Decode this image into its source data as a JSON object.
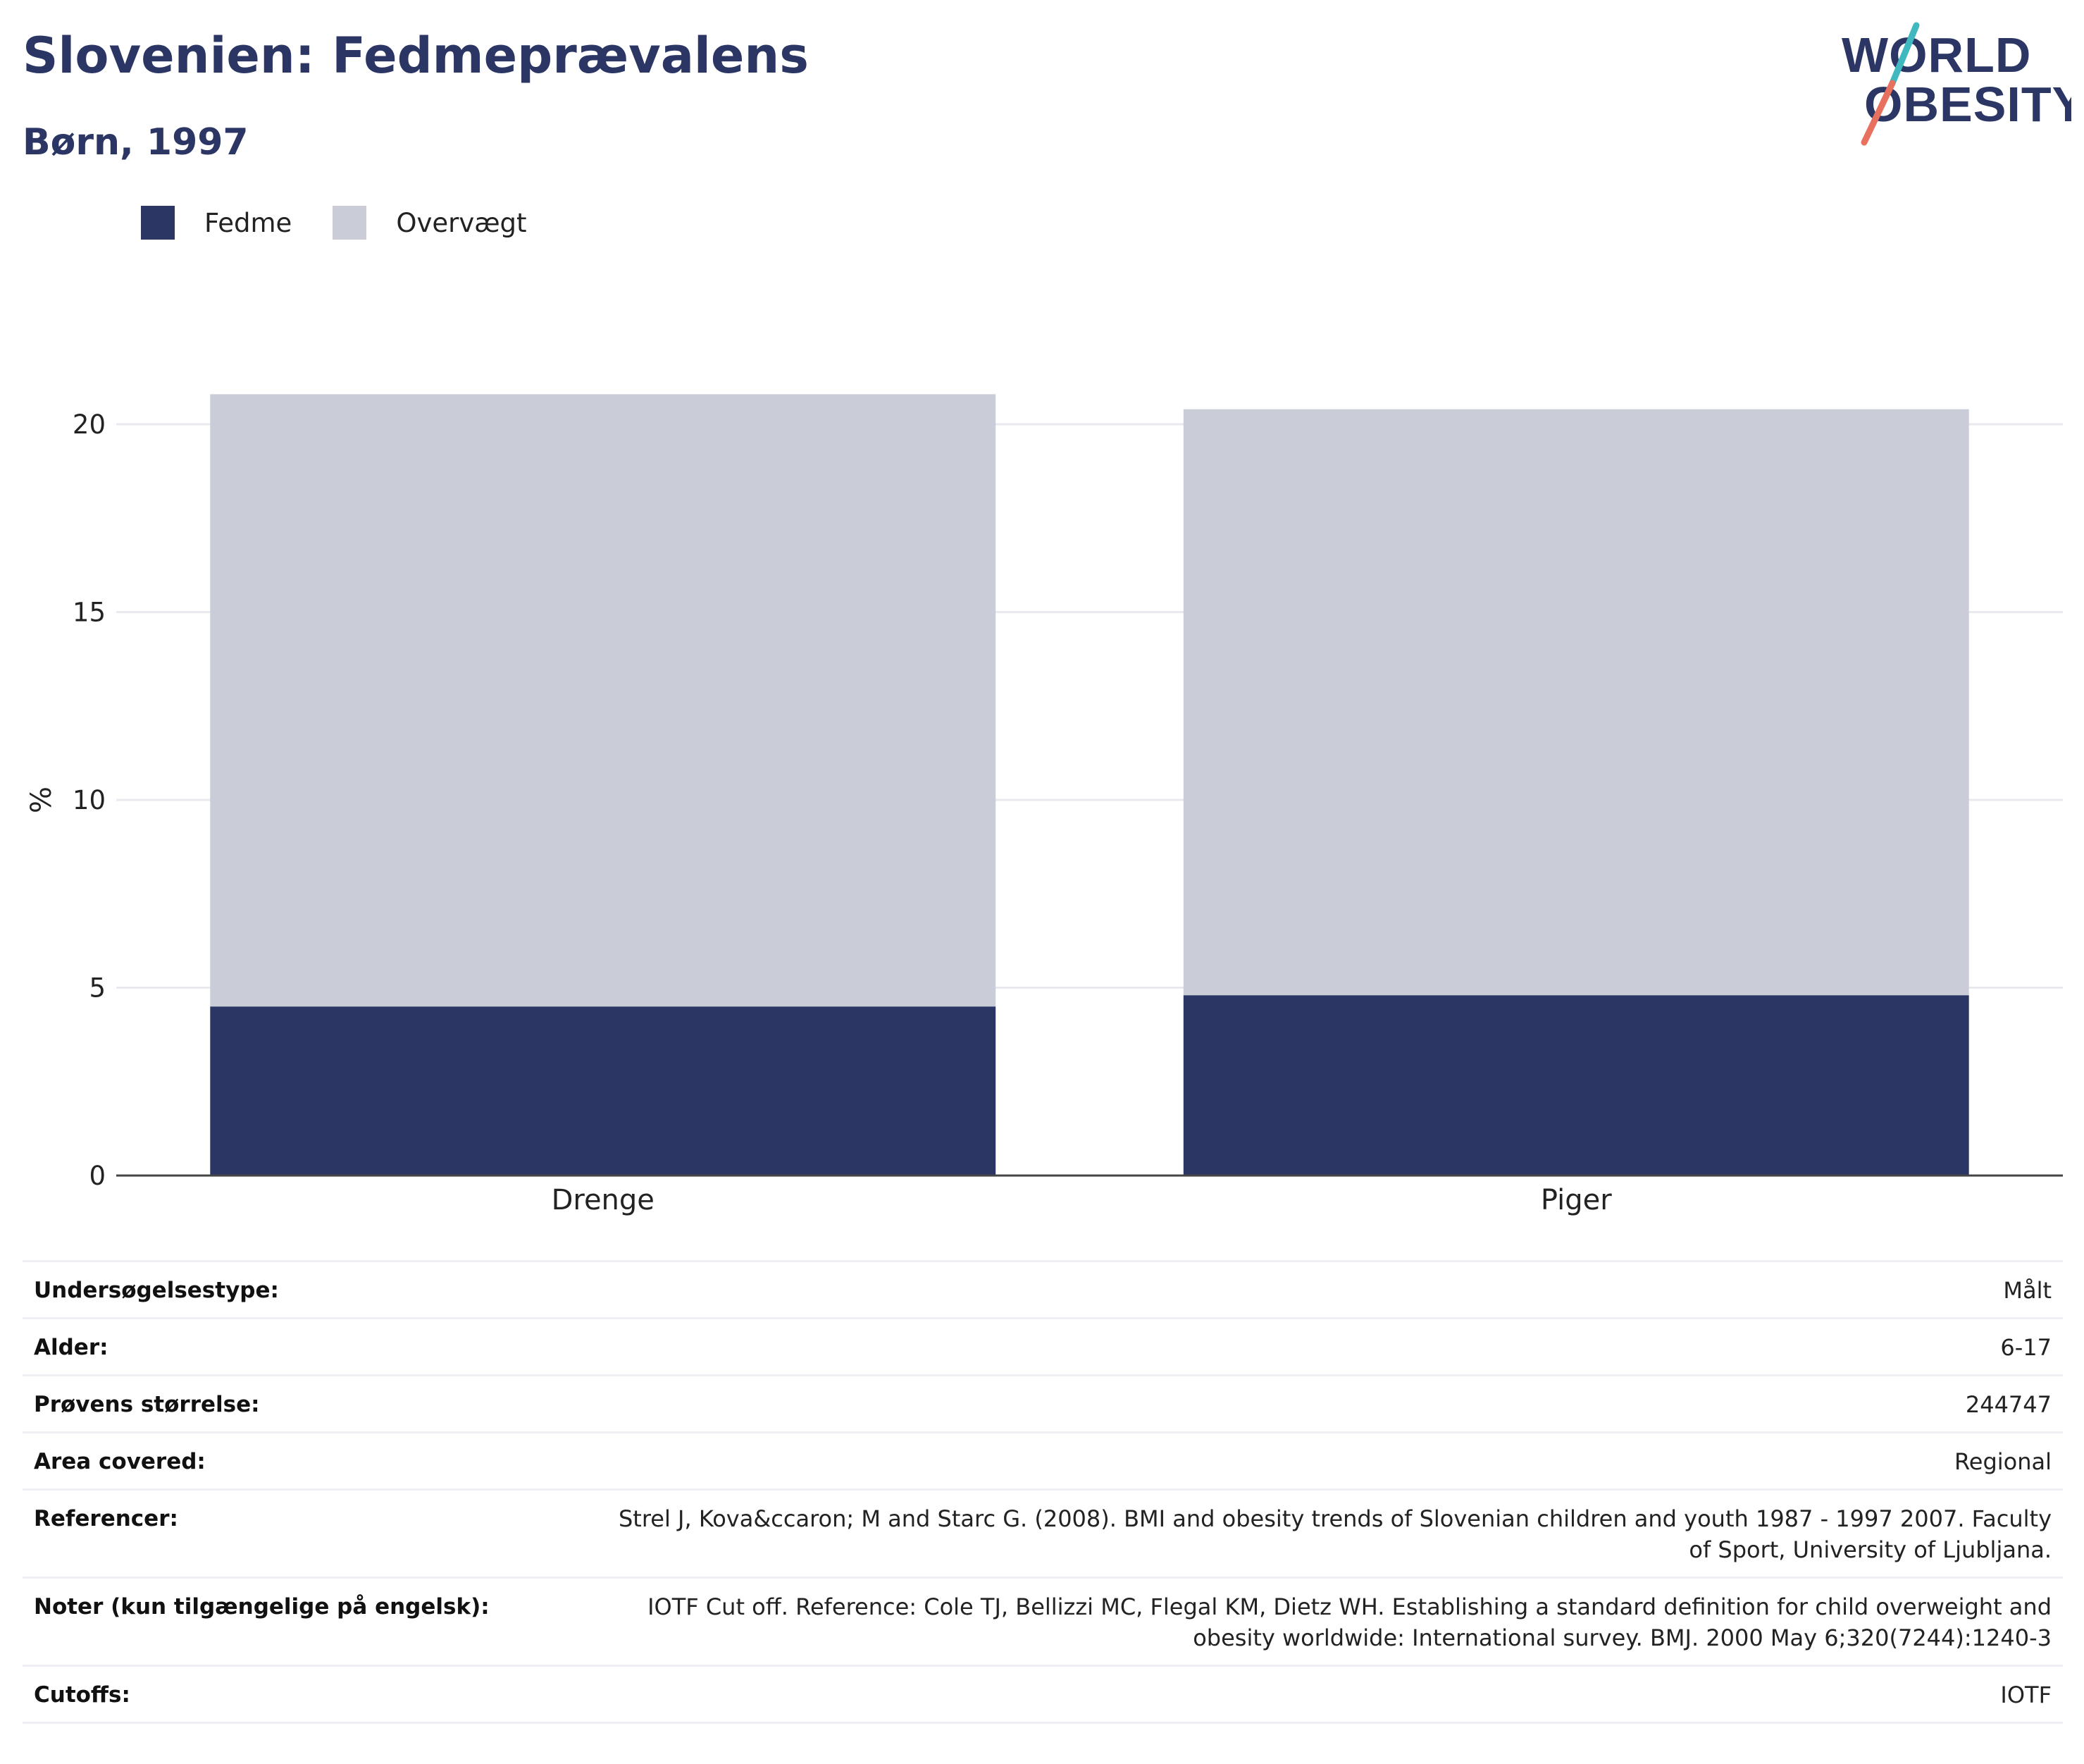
{
  "header": {
    "title": "Slovenien: Fedmeprævalens",
    "subtitle": "Børn, 1997"
  },
  "logo": {
    "line1": "WORLD",
    "line2": "OBESITY",
    "colors": {
      "text": "#2b3664",
      "slash_top": "#3fb8c0",
      "slash_bottom": "#e8705f"
    }
  },
  "legend": [
    {
      "label": "Fedme",
      "color": "#2b3664"
    },
    {
      "label": "Overvægt",
      "color": "#caccd8"
    }
  ],
  "chart_data": {
    "type": "bar",
    "stacked": true,
    "categories": [
      "Drenge",
      "Piger"
    ],
    "series": [
      {
        "name": "Fedme",
        "values": [
          4.5,
          4.8
        ],
        "color": "#2b3664"
      },
      {
        "name": "Overvægt",
        "values": [
          16.3,
          15.6
        ],
        "color": "#caccd8"
      }
    ],
    "xlabel": "",
    "ylabel": "%",
    "ylim": [
      0,
      23
    ],
    "yticks": [
      0,
      5,
      10,
      15,
      20
    ],
    "grid": true,
    "legend_position": "top-left"
  },
  "info": [
    {
      "label": "Undersøgelsestype:",
      "value": "Målt"
    },
    {
      "label": "Alder:",
      "value": "6-17"
    },
    {
      "label": "Prøvens størrelse:",
      "value": "244747"
    },
    {
      "label": "Area covered:",
      "value": "Regional"
    },
    {
      "label": "Referencer:",
      "value": "Strel J, Kova&ccaron; M and Starc G. (2008). BMI and obesity trends of Slovenian children and youth 1987 - 1997 2007. Faculty of Sport, University of Ljubljana."
    },
    {
      "label": "Noter (kun tilgængelige på engelsk):",
      "value": "IOTF Cut off. Reference: Cole TJ, Bellizzi MC, Flegal KM, Dietz WH. Establishing a standard definition for child overweight and obesity worldwide: International survey. BMJ. 2000 May 6;320(7244):1240-3"
    },
    {
      "label": "Cutoffs:",
      "value": "IOTF"
    }
  ]
}
